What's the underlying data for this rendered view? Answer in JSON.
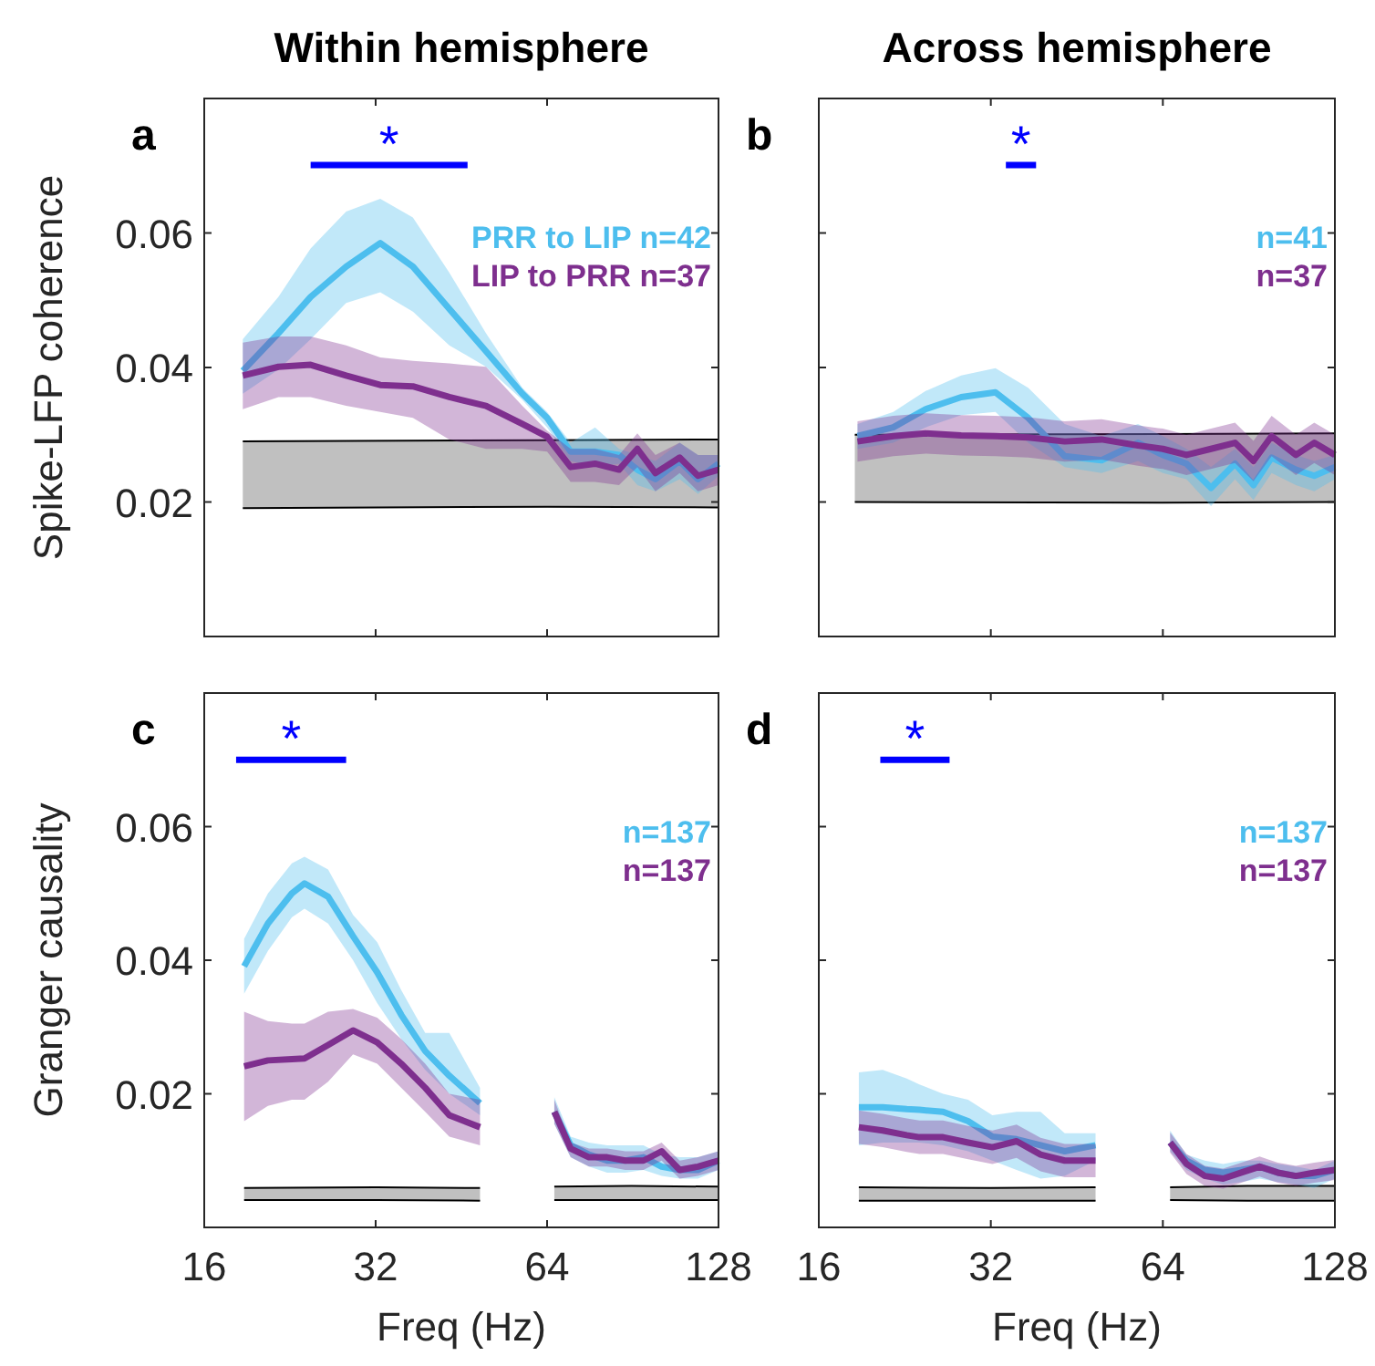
{
  "chart_data": [
    {
      "type": "line",
      "title": "Within hemisphere",
      "ylabel": "Spike-LFP coherence",
      "log": "x",
      "xlim": [
        16,
        128
      ],
      "xticks": [
        16,
        32,
        64,
        128
      ],
      "ylim": [
        0,
        0.08
      ],
      "yticks": [
        0.02,
        0.04,
        0.06
      ],
      "tick_labels": "y",
      "legend": "top right",
      "annotations": [
        "a",
        "*"
      ],
      "series": [
        {
          "type": "line",
          "color": "#000000",
          "x": [
            18.7,
            64,
            128
          ],
          "values": [
            0.029,
            0.0292,
            0.0293
          ]
        },
        {
          "type": "line",
          "color": "#000000",
          "x": [
            18.7,
            64,
            128
          ],
          "values": [
            0.0191,
            0.0193,
            0.0192
          ]
        },
        {
          "type": "line",
          "color": "#0000ff",
          "x": [
            24.6,
            46.4
          ],
          "values": [
            0.0701,
            0.0701
          ]
        },
        {
          "name": "PRR to LIP n=42",
          "color": "#4dbeee",
          "x": [
            18.7,
            21.6,
            24.6,
            28.4,
            32.6,
            37.2,
            43.1,
            50,
            57.9,
            64,
            70.4,
            77.7,
            85.6,
            92.2,
            99.2,
            109.4,
            117.8,
            128
          ],
          "values": [
            0.0395,
            0.0451,
            0.0505,
            0.055,
            0.0585,
            0.055,
            0.0487,
            0.0424,
            0.0361,
            0.0325,
            0.0275,
            0.0275,
            0.027,
            0.0248,
            0.0234,
            0.0261,
            0.0234,
            0.0257
          ],
          "upper": [
            0.0442,
            0.0505,
            0.0577,
            0.0632,
            0.0651,
            0.0623,
            0.0541,
            0.0451,
            0.037,
            0.0334,
            0.0288,
            0.0311,
            0.0279,
            0.027,
            0.0261,
            0.0288,
            0.027,
            0.027
          ],
          "lower": [
            0.0361,
            0.0397,
            0.0442,
            0.0496,
            0.0512,
            0.0483,
            0.0433,
            0.0401,
            0.0352,
            0.0311,
            0.0261,
            0.0252,
            0.0257,
            0.0225,
            0.0216,
            0.0234,
            0.0212,
            0.0239
          ]
        },
        {
          "name": "LIP to PRR n=37",
          "color": "#7e2f8e",
          "x": [
            18.7,
            21.6,
            24.6,
            28.4,
            32.6,
            37.2,
            43.1,
            50,
            57.9,
            64,
            70.4,
            77.7,
            85.6,
            92.2,
            99.2,
            109.4,
            117.8,
            128
          ],
          "values": [
            0.0388,
            0.0401,
            0.0404,
            0.0388,
            0.0374,
            0.0372,
            0.0356,
            0.0343,
            0.0316,
            0.0297,
            0.0252,
            0.0257,
            0.0248,
            0.0279,
            0.0243,
            0.0266,
            0.0239,
            0.0248
          ],
          "upper": [
            0.0437,
            0.0446,
            0.0446,
            0.0433,
            0.0415,
            0.041,
            0.0406,
            0.0401,
            0.0343,
            0.0306,
            0.0279,
            0.0279,
            0.027,
            0.0302,
            0.027,
            0.0288,
            0.027,
            0.027
          ],
          "lower": [
            0.0338,
            0.0356,
            0.0356,
            0.0343,
            0.0334,
            0.0325,
            0.0293,
            0.0279,
            0.0279,
            0.0275,
            0.023,
            0.023,
            0.0225,
            0.0252,
            0.0216,
            0.0243,
            0.0216,
            0.0225
          ]
        }
      ]
    },
    {
      "type": "line",
      "title": "Across hemisphere",
      "log": "x",
      "xlim": [
        16,
        128
      ],
      "xticks": [
        16,
        32,
        64,
        128
      ],
      "ylim": [
        0,
        0.08
      ],
      "yticks": [
        0.02,
        0.04,
        0.06
      ],
      "tick_labels": false,
      "legend": "top right",
      "annotations": [
        "b",
        "*"
      ],
      "series": [
        {
          "type": "line",
          "color": "#000000",
          "x": [
            18.5,
            64,
            128
          ],
          "values": [
            0.03,
            0.0301,
            0.0302
          ]
        },
        {
          "type": "line",
          "color": "#000000",
          "x": [
            18.5,
            64,
            128
          ],
          "values": [
            0.02,
            0.0199,
            0.02
          ]
        },
        {
          "type": "line",
          "color": "#0000ff",
          "x": [
            34,
            38.4
          ],
          "values": [
            0.0701,
            0.0701
          ]
        },
        {
          "name": "n=41",
          "color": "#4dbeee",
          "x": [
            18.7,
            21.6,
            24.6,
            28.4,
            32.6,
            37.2,
            43.1,
            50,
            57.9,
            64,
            70.4,
            77.7,
            85.6,
            92.2,
            99.2,
            109.4,
            117.8,
            128
          ],
          "values": [
            0.0298,
            0.0311,
            0.0338,
            0.0356,
            0.0363,
            0.0325,
            0.0268,
            0.0262,
            0.0288,
            0.027,
            0.0257,
            0.0221,
            0.0257,
            0.0225,
            0.0266,
            0.0248,
            0.0239,
            0.0252
          ],
          "upper": [
            0.0316,
            0.0334,
            0.0365,
            0.0388,
            0.0399,
            0.037,
            0.0316,
            0.0298,
            0.0316,
            0.0298,
            0.0279,
            0.0252,
            0.0279,
            0.0252,
            0.0288,
            0.027,
            0.0261,
            0.027
          ],
          "lower": [
            0.0279,
            0.0288,
            0.0311,
            0.0329,
            0.0334,
            0.0288,
            0.0252,
            0.0243,
            0.0261,
            0.0243,
            0.0234,
            0.0194,
            0.0234,
            0.0203,
            0.0243,
            0.0225,
            0.0216,
            0.0234
          ]
        },
        {
          "name": "n=37",
          "color": "#7e2f8e",
          "x": [
            18.7,
            21.6,
            24.6,
            28.4,
            32.6,
            37.2,
            43.1,
            50,
            57.9,
            64,
            70.4,
            77.7,
            85.6,
            92.2,
            99.2,
            109.4,
            117.8,
            128
          ],
          "values": [
            0.029,
            0.0298,
            0.0302,
            0.0299,
            0.0298,
            0.0296,
            0.029,
            0.0293,
            0.0284,
            0.0279,
            0.027,
            0.0279,
            0.0288,
            0.0261,
            0.0298,
            0.027,
            0.0288,
            0.027
          ],
          "upper": [
            0.032,
            0.0328,
            0.0332,
            0.0329,
            0.0328,
            0.0326,
            0.032,
            0.0323,
            0.0314,
            0.0309,
            0.03,
            0.0309,
            0.0318,
            0.0291,
            0.0328,
            0.03,
            0.0318,
            0.03
          ],
          "lower": [
            0.026,
            0.0268,
            0.0272,
            0.0269,
            0.0268,
            0.0266,
            0.026,
            0.0263,
            0.0254,
            0.0249,
            0.024,
            0.0249,
            0.0258,
            0.0231,
            0.0268,
            0.024,
            0.0258,
            0.024
          ]
        }
      ]
    },
    {
      "type": "line",
      "xlabel": "Freq (Hz)",
      "ylabel": "Granger causality",
      "log": "x",
      "xlim": [
        16,
        128
      ],
      "xticks": [
        16,
        32,
        64,
        128
      ],
      "ylim": [
        0,
        0.08
      ],
      "yticks": [
        0.02,
        0.04,
        0.06
      ],
      "legend": "top right",
      "annotations": [
        "c",
        "*"
      ],
      "series": [
        {
          "type": "line",
          "color": "#000000",
          "x": [
            18.8,
            32,
            48.8,
            57,
            65.9,
            90,
            128
          ],
          "values": [
            0.0059,
            0.006,
            0.0059,
            null,
            0.0061,
            0.0062,
            0.0061
          ]
        },
        {
          "type": "line",
          "color": "#000000",
          "x": [
            18.8,
            32,
            48.8,
            57,
            65.9,
            90,
            128
          ],
          "values": [
            0.0041,
            0.0041,
            0.004,
            null,
            0.0041,
            0.0041,
            0.0041
          ]
        },
        {
          "type": "line",
          "color": "#0000ff",
          "x": [
            18.2,
            28.4
          ],
          "values": [
            0.07,
            0.07
          ]
        },
        {
          "name": "n=137",
          "color": "#4dbeee",
          "x": [
            18.8,
            20.7,
            22.8,
            24,
            26.4,
            29.2,
            32.2,
            35.5,
            39.1,
            43.1,
            48.8,
            57,
            65.9,
            70.4,
            75.8,
            81.6,
            87.8,
            94.5,
            101.7,
            109.4,
            117.8,
            128
          ],
          "values": [
            0.0391,
            0.0455,
            0.05,
            0.0515,
            0.0495,
            0.0436,
            0.0382,
            0.0318,
            0.0264,
            0.0227,
            0.0186,
            null,
            0.0173,
            0.0123,
            0.0109,
            0.01,
            0.01,
            0.0105,
            0.0091,
            0.0086,
            0.0086,
            0.01
          ],
          "upper": [
            0.0432,
            0.05,
            0.0545,
            0.0555,
            0.0536,
            0.0468,
            0.0427,
            0.0355,
            0.0291,
            0.0291,
            0.0209,
            null,
            0.0195,
            0.0136,
            0.0127,
            0.0123,
            0.0123,
            0.0123,
            0.0109,
            0.0105,
            0.0105,
            0.0114
          ],
          "lower": [
            0.035,
            0.0414,
            0.0464,
            0.0477,
            0.0455,
            0.04,
            0.0336,
            0.0282,
            0.0236,
            0.02,
            0.0168,
            null,
            0.0155,
            0.0105,
            0.0091,
            0.0082,
            0.0082,
            0.0086,
            0.0077,
            0.0073,
            0.0073,
            0.0086
          ]
        },
        {
          "name": "n=137",
          "color": "#7e2f8e",
          "x": [
            18.8,
            20.7,
            22.8,
            24,
            26.4,
            29.2,
            32.2,
            35.5,
            39.1,
            43.1,
            48.8,
            57,
            65.9,
            70.4,
            75.8,
            81.6,
            87.8,
            94.5,
            101.7,
            109.4,
            117.8,
            128
          ],
          "values": [
            0.0241,
            0.025,
            0.0252,
            0.0253,
            0.0273,
            0.0295,
            0.0277,
            0.0245,
            0.0209,
            0.0168,
            0.015,
            null,
            0.0173,
            0.0118,
            0.0105,
            0.0105,
            0.01,
            0.01,
            0.0114,
            0.0086,
            0.0091,
            0.01
          ],
          "upper": [
            0.0323,
            0.0309,
            0.0305,
            0.0305,
            0.0323,
            0.0327,
            0.0314,
            0.0282,
            0.0245,
            0.02,
            0.0191,
            null,
            0.0191,
            0.0127,
            0.0118,
            0.0118,
            0.0114,
            0.0114,
            0.0127,
            0.01,
            0.0105,
            0.0114
          ],
          "lower": [
            0.0159,
            0.0182,
            0.0191,
            0.0191,
            0.0218,
            0.0259,
            0.0245,
            0.0209,
            0.0173,
            0.0136,
            0.0123,
            null,
            0.0155,
            0.0105,
            0.0091,
            0.0091,
            0.0086,
            0.0086,
            0.01,
            0.0073,
            0.0077,
            0.0086
          ]
        }
      ]
    },
    {
      "type": "line",
      "xlabel": "Freq (Hz)",
      "log": "x",
      "xlim": [
        16,
        128
      ],
      "xticks": [
        16,
        32,
        64,
        128
      ],
      "ylim": [
        0,
        0.08
      ],
      "yticks": [
        0.02,
        0.04,
        0.06
      ],
      "tick_labels": "x",
      "legend": "top right",
      "annotations": [
        "d",
        "*"
      ],
      "series": [
        {
          "type": "line",
          "color": "#000000",
          "x": [
            18.8,
            32,
            48.8,
            57,
            65.9,
            90,
            128
          ],
          "values": [
            0.006,
            0.0059,
            0.006,
            null,
            0.006,
            0.0062,
            0.0062
          ]
        },
        {
          "type": "line",
          "color": "#000000",
          "x": [
            18.8,
            32,
            48.8,
            57,
            65.9,
            90,
            128
          ],
          "values": [
            0.004,
            0.004,
            0.004,
            null,
            0.0041,
            0.004,
            0.004
          ]
        },
        {
          "type": "line",
          "color": "#0000ff",
          "x": [
            20.5,
            27.1
          ],
          "values": [
            0.07,
            0.07
          ]
        },
        {
          "name": "n=137",
          "color": "#4dbeee",
          "x": [
            18.8,
            20.7,
            22.8,
            24,
            26.4,
            29.2,
            32.2,
            35.5,
            39.1,
            43.1,
            48.8,
            57,
            65.9,
            70.4,
            75.8,
            81.6,
            87.8,
            94.5,
            101.7,
            109.4,
            117.8,
            128
          ],
          "values": [
            0.018,
            0.018,
            0.0177,
            0.0176,
            0.0173,
            0.0159,
            0.0136,
            0.0132,
            0.0123,
            0.0114,
            0.0123,
            null,
            0.0127,
            0.01,
            0.0086,
            0.0082,
            0.0086,
            0.0091,
            0.0082,
            0.0077,
            0.0077,
            0.0086
          ],
          "upper": [
            0.0232,
            0.0236,
            0.0223,
            0.0214,
            0.02,
            0.0191,
            0.0168,
            0.0173,
            0.0173,
            0.0141,
            0.0141,
            null,
            0.0145,
            0.0109,
            0.01,
            0.0095,
            0.01,
            0.01,
            0.0095,
            0.0091,
            0.0086,
            0.01
          ],
          "lower": [
            0.0123,
            0.0127,
            0.0127,
            0.0127,
            0.0123,
            0.0114,
            0.01,
            0.0086,
            0.0073,
            0.0077,
            0.01,
            null,
            0.0114,
            0.0086,
            0.0073,
            0.0064,
            0.0068,
            0.0073,
            0.0068,
            0.0064,
            0.0059,
            0.0073
          ]
        },
        {
          "name": "n=137",
          "color": "#7e2f8e",
          "x": [
            18.8,
            20.7,
            22.8,
            24,
            26.4,
            29.2,
            32.2,
            35.5,
            39.1,
            43.1,
            48.8,
            57,
            65.9,
            70.4,
            75.8,
            81.6,
            87.8,
            94.5,
            101.7,
            109.4,
            117.8,
            128
          ],
          "values": [
            0.015,
            0.0145,
            0.0138,
            0.0135,
            0.0135,
            0.0127,
            0.012,
            0.0129,
            0.0109,
            0.01,
            0.01,
            null,
            0.0127,
            0.0095,
            0.0077,
            0.0073,
            0.0082,
            0.0091,
            0.0082,
            0.0077,
            0.0082,
            0.0086
          ],
          "upper": [
            0.0175,
            0.017,
            0.0163,
            0.016,
            0.016,
            0.0152,
            0.0145,
            0.0154,
            0.0134,
            0.0125,
            0.0125,
            null,
            0.0142,
            0.011,
            0.0092,
            0.0088,
            0.0097,
            0.0106,
            0.0097,
            0.0092,
            0.0097,
            0.0101
          ],
          "lower": [
            0.0125,
            0.012,
            0.0113,
            0.011,
            0.011,
            0.0102,
            0.0095,
            0.0104,
            0.0084,
            0.0075,
            0.0075,
            null,
            0.0112,
            0.008,
            0.0062,
            0.0058,
            0.0067,
            0.0076,
            0.0067,
            0.0062,
            0.0067,
            0.0071
          ]
        }
      ]
    }
  ]
}
